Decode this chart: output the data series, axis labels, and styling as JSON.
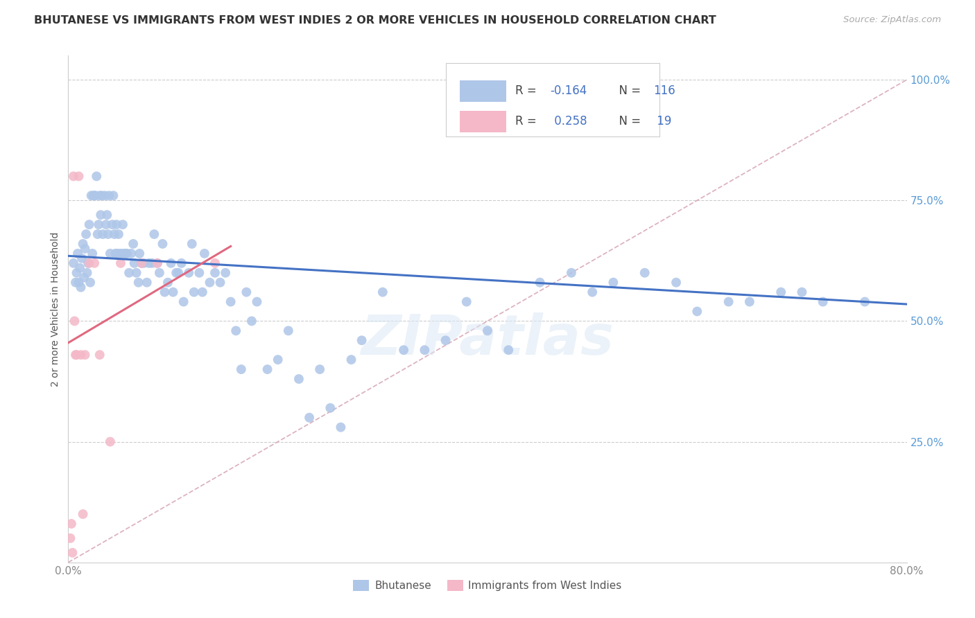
{
  "title": "BHUTANESE VS IMMIGRANTS FROM WEST INDIES 2 OR MORE VEHICLES IN HOUSEHOLD CORRELATION CHART",
  "source": "Source: ZipAtlas.com",
  "ylabel": "2 or more Vehicles in Household",
  "x_min": 0.0,
  "x_max": 0.8,
  "y_min": 0.0,
  "y_max": 1.05,
  "bhutanese_color": "#aec6e8",
  "bhutanese_line_color": "#4472c4",
  "immigrants_color": "#f4b8c8",
  "immigrants_line_color": "#e06880",
  "diagonal_color": "#d4a0b0",
  "R_bhutanese": -0.164,
  "N_bhutanese": 116,
  "R_immigrants": 0.258,
  "N_immigrants": 19,
  "blue_regression_x0": 0.0,
  "blue_regression_y0": 0.635,
  "blue_regression_x1": 0.8,
  "blue_regression_y1": 0.535,
  "pink_regression_x0": 0.0,
  "pink_regression_y0": 0.455,
  "pink_regression_x1": 0.155,
  "pink_regression_y1": 0.655,
  "bhutanese_x": [
    0.005,
    0.007,
    0.008,
    0.009,
    0.01,
    0.011,
    0.012,
    0.013,
    0.014,
    0.015,
    0.016,
    0.017,
    0.018,
    0.019,
    0.02,
    0.021,
    0.022,
    0.023,
    0.024,
    0.025,
    0.026,
    0.027,
    0.028,
    0.029,
    0.03,
    0.031,
    0.032,
    0.033,
    0.035,
    0.036,
    0.037,
    0.038,
    0.039,
    0.04,
    0.042,
    0.043,
    0.044,
    0.045,
    0.046,
    0.047,
    0.048,
    0.05,
    0.052,
    0.053,
    0.055,
    0.056,
    0.058,
    0.06,
    0.062,
    0.063,
    0.065,
    0.067,
    0.068,
    0.07,
    0.072,
    0.075,
    0.077,
    0.08,
    0.082,
    0.085,
    0.087,
    0.09,
    0.092,
    0.095,
    0.098,
    0.1,
    0.103,
    0.105,
    0.108,
    0.11,
    0.115,
    0.118,
    0.12,
    0.125,
    0.128,
    0.13,
    0.135,
    0.14,
    0.145,
    0.15,
    0.155,
    0.16,
    0.165,
    0.17,
    0.175,
    0.18,
    0.19,
    0.2,
    0.21,
    0.22,
    0.23,
    0.24,
    0.25,
    0.26,
    0.27,
    0.28,
    0.3,
    0.32,
    0.34,
    0.36,
    0.38,
    0.4,
    0.42,
    0.45,
    0.48,
    0.5,
    0.52,
    0.55,
    0.58,
    0.6,
    0.63,
    0.65,
    0.68,
    0.7,
    0.72,
    0.76
  ],
  "bhutanese_y": [
    0.62,
    0.58,
    0.6,
    0.64,
    0.58,
    0.61,
    0.57,
    0.63,
    0.66,
    0.59,
    0.65,
    0.68,
    0.6,
    0.62,
    0.7,
    0.58,
    0.76,
    0.64,
    0.76,
    0.76,
    0.76,
    0.8,
    0.68,
    0.7,
    0.76,
    0.72,
    0.76,
    0.68,
    0.76,
    0.7,
    0.72,
    0.68,
    0.76,
    0.64,
    0.7,
    0.76,
    0.68,
    0.64,
    0.7,
    0.64,
    0.68,
    0.64,
    0.7,
    0.64,
    0.64,
    0.64,
    0.6,
    0.64,
    0.66,
    0.62,
    0.6,
    0.58,
    0.64,
    0.62,
    0.62,
    0.58,
    0.62,
    0.62,
    0.68,
    0.62,
    0.6,
    0.66,
    0.56,
    0.58,
    0.62,
    0.56,
    0.6,
    0.6,
    0.62,
    0.54,
    0.6,
    0.66,
    0.56,
    0.6,
    0.56,
    0.64,
    0.58,
    0.6,
    0.58,
    0.6,
    0.54,
    0.48,
    0.4,
    0.56,
    0.5,
    0.54,
    0.4,
    0.42,
    0.48,
    0.38,
    0.3,
    0.4,
    0.32,
    0.28,
    0.42,
    0.46,
    0.56,
    0.44,
    0.44,
    0.46,
    0.54,
    0.48,
    0.44,
    0.58,
    0.6,
    0.56,
    0.58,
    0.6,
    0.58,
    0.52,
    0.54,
    0.54,
    0.56,
    0.56,
    0.54,
    0.54
  ],
  "immigrants_x": [
    0.002,
    0.003,
    0.004,
    0.005,
    0.006,
    0.007,
    0.008,
    0.01,
    0.012,
    0.014,
    0.016,
    0.02,
    0.025,
    0.03,
    0.04,
    0.05,
    0.07,
    0.085,
    0.14
  ],
  "immigrants_y": [
    0.05,
    0.08,
    0.02,
    0.8,
    0.5,
    0.43,
    0.43,
    0.8,
    0.43,
    0.1,
    0.43,
    0.62,
    0.62,
    0.43,
    0.25,
    0.62,
    0.62,
    0.62,
    0.62
  ]
}
